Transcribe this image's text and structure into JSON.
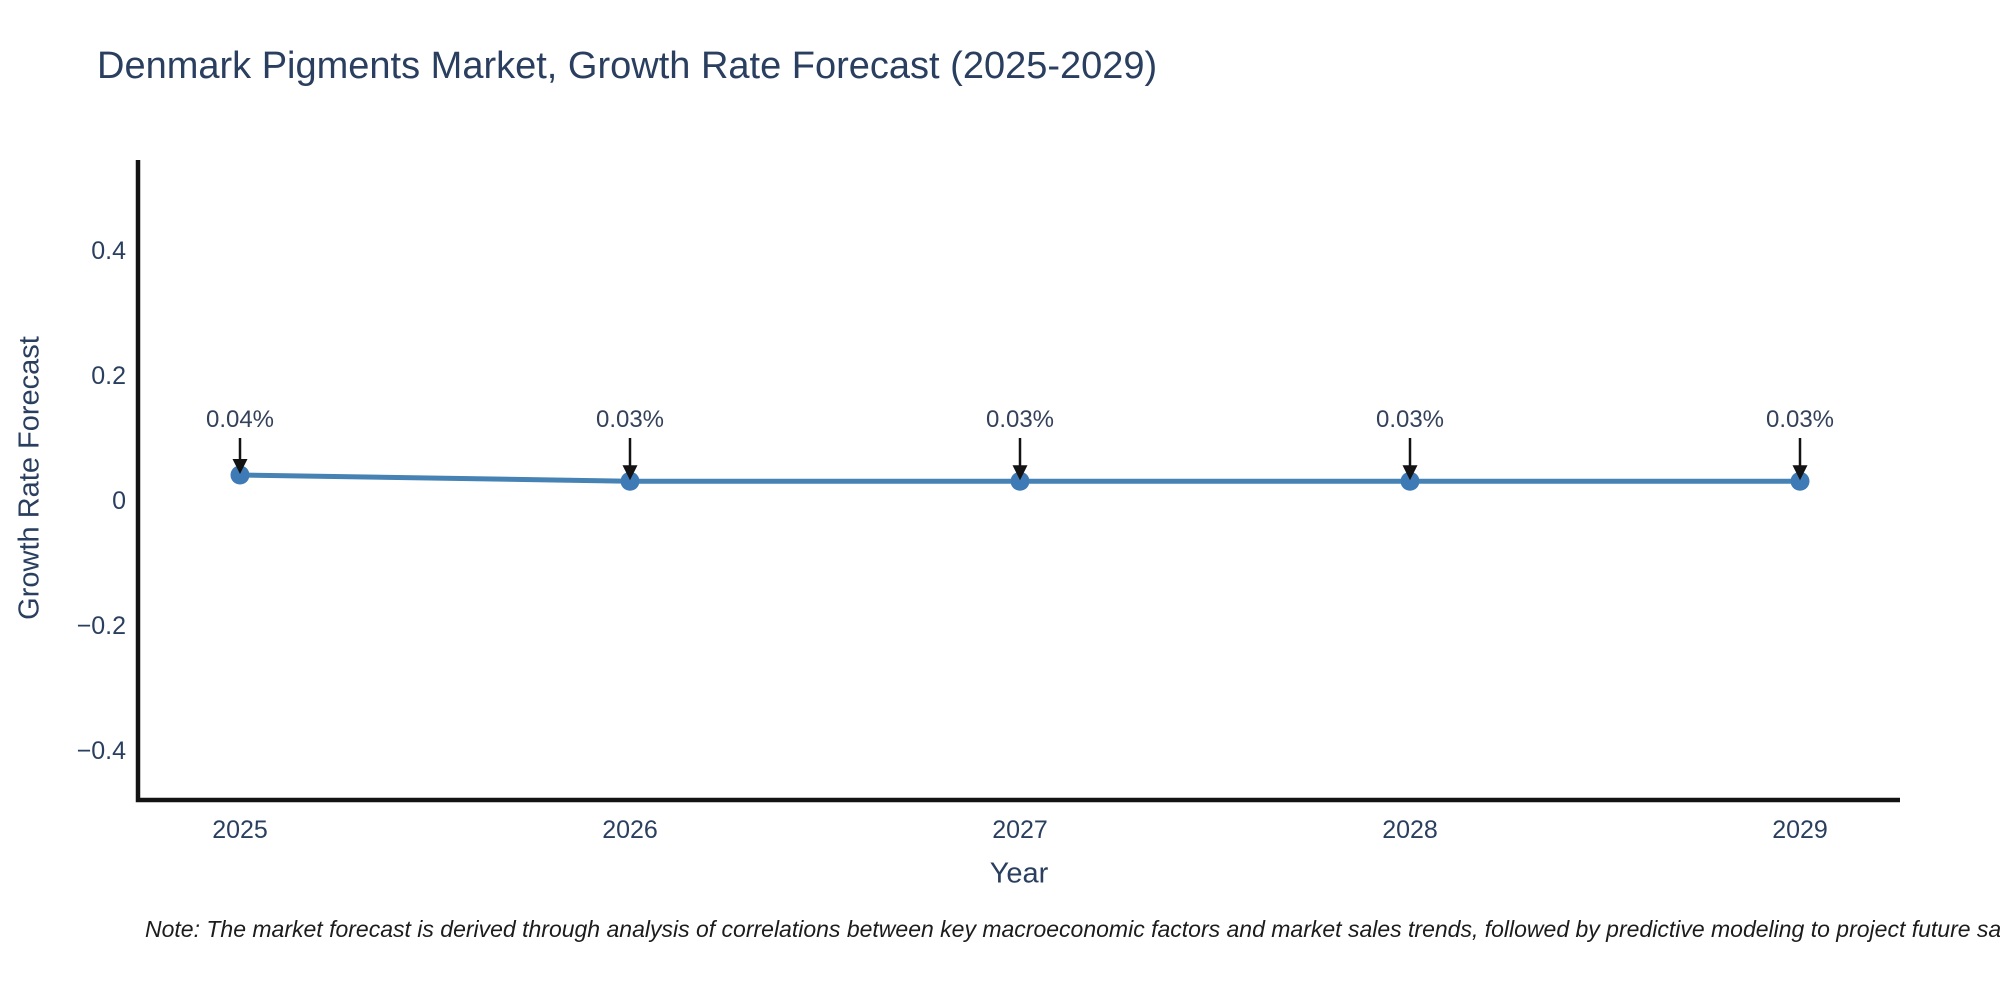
{
  "title": "Denmark Pigments Market, Growth Rate Forecast (2025-2029)",
  "note": "Note: The market forecast is derived through analysis of correlations between key macroeconomic factors and market sales trends, followed by predictive modeling to project future sal",
  "chart_data": {
    "type": "line",
    "title": "Denmark Pigments Market, Growth Rate Forecast (2025-2029)",
    "categories": [
      "2025",
      "2026",
      "2027",
      "2028",
      "2029"
    ],
    "values": [
      0.04,
      0.03,
      0.03,
      0.03,
      0.03
    ],
    "point_labels": [
      "0.04%",
      "0.03%",
      "0.03%",
      "0.03%",
      "0.03%"
    ],
    "xlabel": "Year",
    "ylabel": "Growth Rate Forecast",
    "yticks": [
      {
        "value": 0.4,
        "label": "0.4"
      },
      {
        "value": 0.2,
        "label": "0.2"
      },
      {
        "value": 0,
        "label": "0"
      },
      {
        "value": -0.2,
        "label": "−0.2"
      },
      {
        "value": -0.4,
        "label": "−0.4"
      }
    ],
    "ylim": [
      -0.52,
      0.54
    ],
    "grid": false,
    "legend": "none",
    "annotations": "down-arrow-to-each-point",
    "colors": {
      "line": "#4682b4",
      "marker": "#3e7bb6",
      "arrow": "#131313",
      "axis": "#131313",
      "tick_text": "#2a3f5f",
      "title_text": "#2a3f5f",
      "annotation_text": "#33415a"
    }
  }
}
